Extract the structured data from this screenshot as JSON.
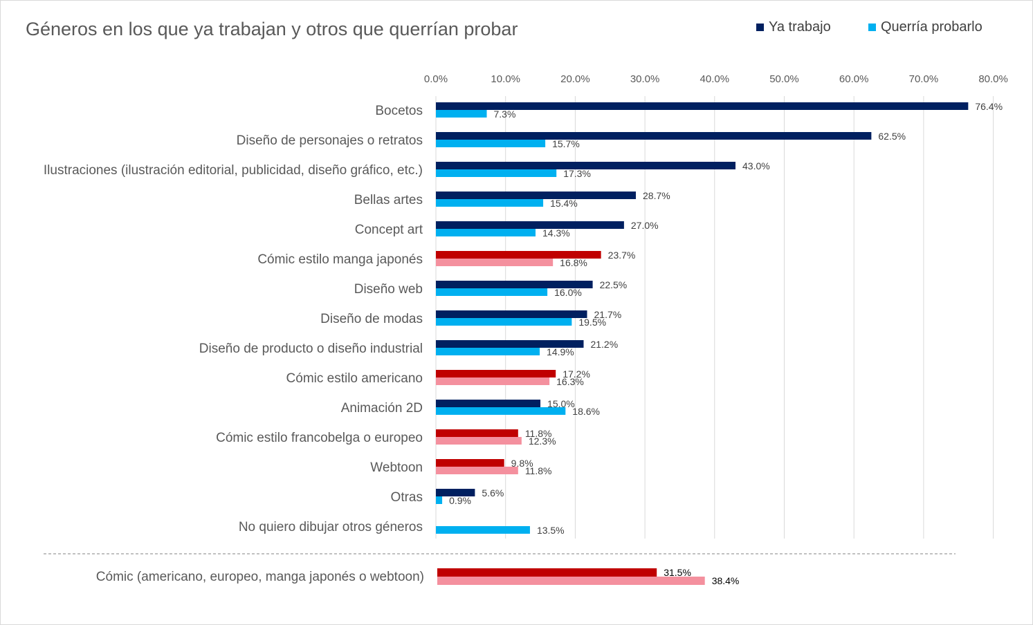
{
  "colors": {
    "ya_trabajo": "#002060",
    "querria_probarlo": "#00B0F0",
    "comic_ya_trabajo": "#C00000",
    "comic_querria_probarlo": "#F4909E",
    "gridline": "#D9D9D9",
    "text": "#595959"
  },
  "chart_data": {
    "type": "bar",
    "orientation": "horizontal",
    "title": "Géneros en los que ya trabajan y otros que querrían probar",
    "xlim": [
      0,
      80
    ],
    "x_ticks": [
      "0.0%",
      "10.0%",
      "20.0%",
      "30.0%",
      "40.0%",
      "50.0%",
      "60.0%",
      "70.0%",
      "80.0%"
    ],
    "x_axis_position": "top",
    "grid": true,
    "legend_position": "top-right",
    "series": [
      {
        "name": "Ya trabajo",
        "color": "#002060"
      },
      {
        "name": "Querría probarlo",
        "color": "#00B0F0"
      }
    ],
    "categories": [
      {
        "label": "Bocetos",
        "values": [
          76.4,
          7.3
        ],
        "labels": [
          "76.4%",
          "7.3%"
        ],
        "comic": false
      },
      {
        "label": "Diseño de personajes o retratos",
        "values": [
          62.5,
          15.7
        ],
        "labels": [
          "62.5%",
          "15.7%"
        ],
        "comic": false
      },
      {
        "label": "Ilustraciones (ilustración editorial, publicidad, diseño gráfico, etc.)",
        "values": [
          43.0,
          17.3
        ],
        "labels": [
          "43.0%",
          "17.3%"
        ],
        "comic": false
      },
      {
        "label": "Bellas artes",
        "values": [
          28.7,
          15.4
        ],
        "labels": [
          "28.7%",
          "15.4%"
        ],
        "comic": false
      },
      {
        "label": "Concept art",
        "values": [
          27.0,
          14.3
        ],
        "labels": [
          "27.0%",
          "14.3%"
        ],
        "comic": false
      },
      {
        "label": "Cómic estilo manga japonés",
        "values": [
          23.7,
          16.8
        ],
        "labels": [
          "23.7%",
          "16.8%"
        ],
        "comic": true
      },
      {
        "label": "Diseño web",
        "values": [
          22.5,
          16.0
        ],
        "labels": [
          "22.5%",
          "16.0%"
        ],
        "comic": false
      },
      {
        "label": "Diseño de modas",
        "values": [
          21.7,
          19.5
        ],
        "labels": [
          "21.7%",
          "19.5%"
        ],
        "comic": false
      },
      {
        "label": "Diseño de producto o diseño industrial",
        "values": [
          21.2,
          14.9
        ],
        "labels": [
          "21.2%",
          "14.9%"
        ],
        "comic": false
      },
      {
        "label": "Cómic estilo americano",
        "values": [
          17.2,
          16.3
        ],
        "labels": [
          "17.2%",
          "16.3%"
        ],
        "comic": true
      },
      {
        "label": "Animación 2D",
        "values": [
          15.0,
          18.6
        ],
        "labels": [
          "15.0%",
          "18.6%"
        ],
        "comic": false
      },
      {
        "label": "Cómic estilo francobelga o europeo",
        "values": [
          11.8,
          12.3
        ],
        "labels": [
          "11.8%",
          "12.3%"
        ],
        "comic": true
      },
      {
        "label": "Webtoon",
        "values": [
          9.8,
          11.8
        ],
        "labels": [
          "9.8%",
          "11.8%"
        ],
        "comic": true
      },
      {
        "label": "Otras",
        "values": [
          5.6,
          0.9
        ],
        "labels": [
          "5.6%",
          "0.9%"
        ],
        "comic": false
      },
      {
        "label": "No quiero dibujar otros géneros",
        "values": [
          null,
          13.5
        ],
        "labels": [
          null,
          "13.5%"
        ],
        "comic": false
      }
    ],
    "summary": {
      "label": "Cómic (americano, europeo, manga japonés o webtoon)",
      "values": [
        31.5,
        38.4
      ],
      "labels": [
        "31.5%",
        "38.4%"
      ],
      "comic": true
    }
  }
}
